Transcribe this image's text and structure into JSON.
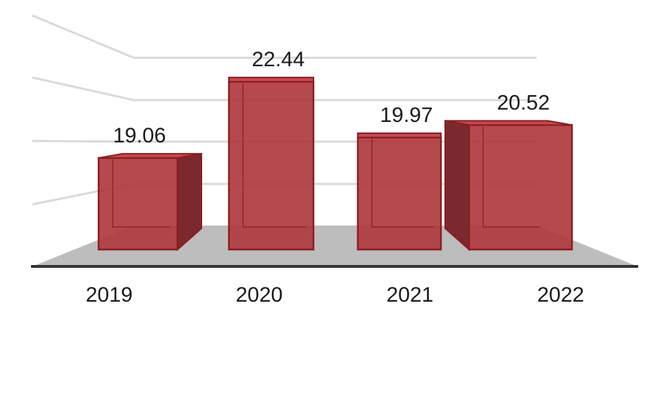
{
  "chart_data": {
    "type": "bar",
    "style": "3d",
    "categories": [
      "2019",
      "2020",
      "2021",
      "2022"
    ],
    "values": [
      19.06,
      22.44,
      19.97,
      20.52
    ],
    "ylim": [
      15,
      23
    ],
    "grid": true,
    "legend": "none",
    "colors": {
      "bar_front": "#b0393f",
      "bar_side": "#7a2a2e",
      "bar_top": "#c04a50",
      "bar_edge": "#8c1c22",
      "floor": "#bdbdbd",
      "baseline": "#333333",
      "gridline": "#d9d9d9"
    }
  }
}
